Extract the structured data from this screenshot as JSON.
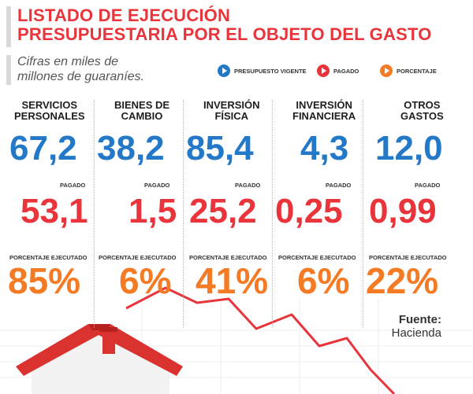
{
  "title": {
    "line1": "LISTADO DE EJECUCIÓN",
    "line2": "PRESUPUESTARIA POR EL OBJETO DEL GASTO"
  },
  "subtitle": {
    "line1": "Cifras en miles de",
    "line2": "millones de guaraníes."
  },
  "legend": [
    {
      "label": "PRESUPUESTO VIGENTE",
      "color": "#2478c8"
    },
    {
      "label": "PAGADO",
      "color": "#e8343a"
    },
    {
      "label": "PORCENTAJE",
      "color": "#f47a24"
    }
  ],
  "labels": {
    "paid": "PAGADO",
    "percent": "PORCENTAJE EJECUTADO"
  },
  "categories": [
    {
      "line1": "SERVICIOS",
      "line2": "PERSONALES",
      "budget": "67,2",
      "paid": "53,1",
      "percent": "85%"
    },
    {
      "line1": "BIENES DE",
      "line2": "CAMBIO",
      "budget": "38,2",
      "paid": "1,5",
      "percent": "6%"
    },
    {
      "line1": "INVERSIÓN",
      "line2": "FÍSICA",
      "budget": "85,4",
      "paid": "25,2",
      "percent": "41%"
    },
    {
      "line1": "INVERSIÓN",
      "line2": "FINANCIERA",
      "budget": "4,3",
      "paid": "0,25",
      "percent": "6%"
    },
    {
      "line1": "OTROS",
      "line2": "GASTOS",
      "budget": "12,0",
      "paid": "0,99",
      "percent": "22%"
    }
  ],
  "source": {
    "title": "Fuente:",
    "name": "Hacienda"
  },
  "colors": {
    "title": "#e8343a",
    "budget": "#2478c8",
    "paid": "#e8343a",
    "percent": "#f47a24"
  }
}
